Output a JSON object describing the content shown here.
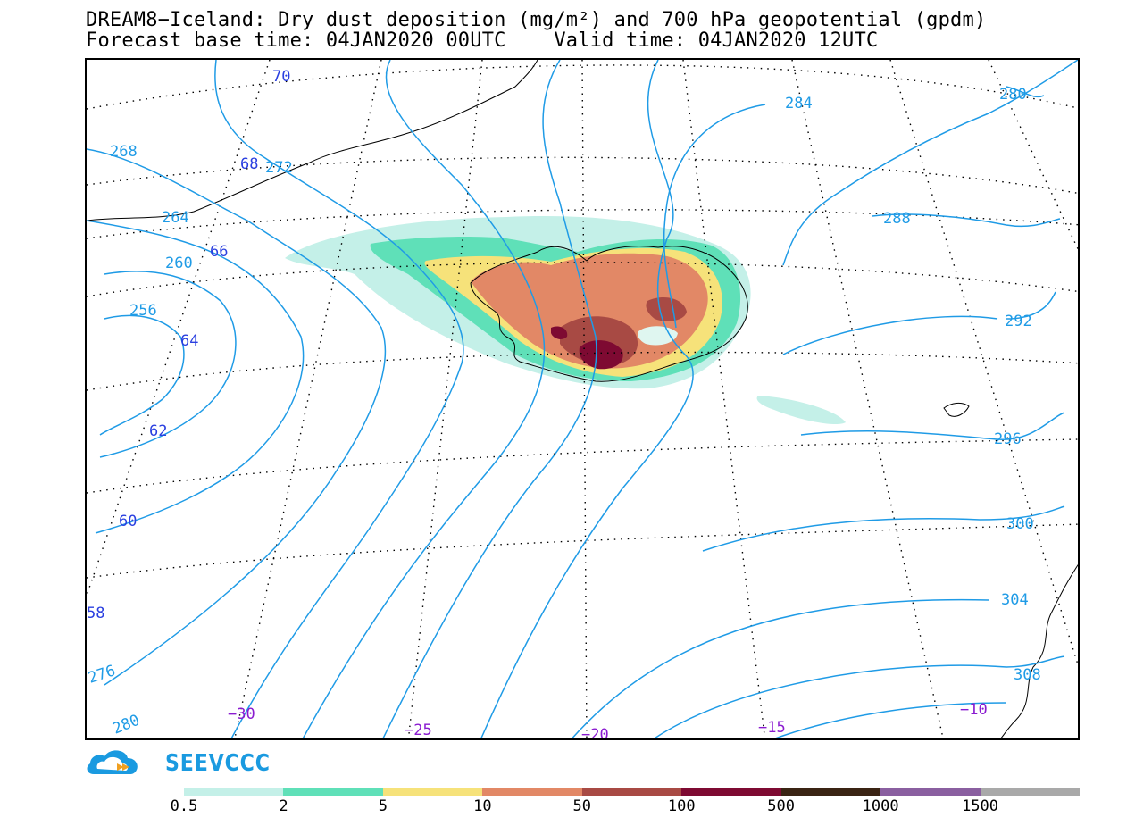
{
  "title_line1": "DREAM8−Iceland: Dry dust deposition (mg/m²) and 700 hPa geopotential (gpdm)",
  "title_line2": "Forecast base time: 04JAN2020 00UTC    Valid time: 04JAN2020 12UTC",
  "logo_text": "SEEVCCC",
  "colors": {
    "contour": "#1f9be6",
    "lat_label": "#2a3fe0",
    "lon_label": "#8a1bd0",
    "coast": "#000000"
  },
  "colorbar": {
    "colors": [
      "#c4f0e8",
      "#5fe0b8",
      "#f6e27a",
      "#e28866",
      "#a84a44",
      "#7e0a32",
      "#3a2414",
      "#8a5fa0",
      "#a9a9a9"
    ],
    "labels": [
      "0.5",
      "2",
      "5",
      "10",
      "50",
      "100",
      "500",
      "1000",
      "1500"
    ]
  },
  "contour_labels": [
    "268",
    "272",
    "264",
    "260",
    "256",
    "284",
    "280",
    "288",
    "292",
    "296",
    "300",
    "304",
    "308",
    "276",
    "280"
  ],
  "lat_labels": [
    "70",
    "68",
    "66",
    "64",
    "62",
    "60",
    "58"
  ],
  "lon_labels": [
    "−30",
    "−25",
    "−20",
    "−15",
    "−10"
  ]
}
